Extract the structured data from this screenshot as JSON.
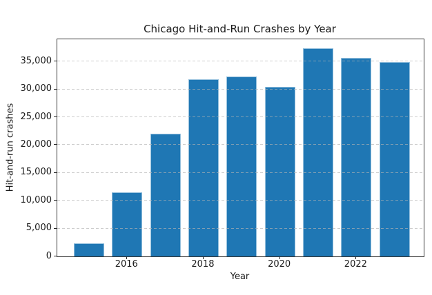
{
  "figure": {
    "background_color": "#ffffff",
    "text_color": "#1a1a1a"
  },
  "chart_data": {
    "type": "bar",
    "title": "Chicago Hit-and-Run Crashes by Year",
    "xlabel": "Year",
    "ylabel": "Hit-and-run crashes",
    "categories": [
      2015,
      2016,
      2017,
      2018,
      2019,
      2020,
      2021,
      2022,
      2023
    ],
    "values": [
      2300,
      11500,
      22000,
      31800,
      32300,
      30500,
      37400,
      35600,
      34900
    ],
    "ylim": [
      0,
      39000
    ],
    "yticks": [
      0,
      5000,
      10000,
      15000,
      20000,
      25000,
      30000,
      35000
    ],
    "ytick_labels": [
      "0",
      "5,000",
      "10,000",
      "15,000",
      "20,000",
      "25,000",
      "30,000",
      "35,000"
    ],
    "xticks": [
      2016,
      2018,
      2020,
      2022
    ],
    "grid": "horizontal-dashed-on-top",
    "legend": "none",
    "bar_color": "#1f77b4",
    "bar_edge_color": "#bed8eb"
  }
}
